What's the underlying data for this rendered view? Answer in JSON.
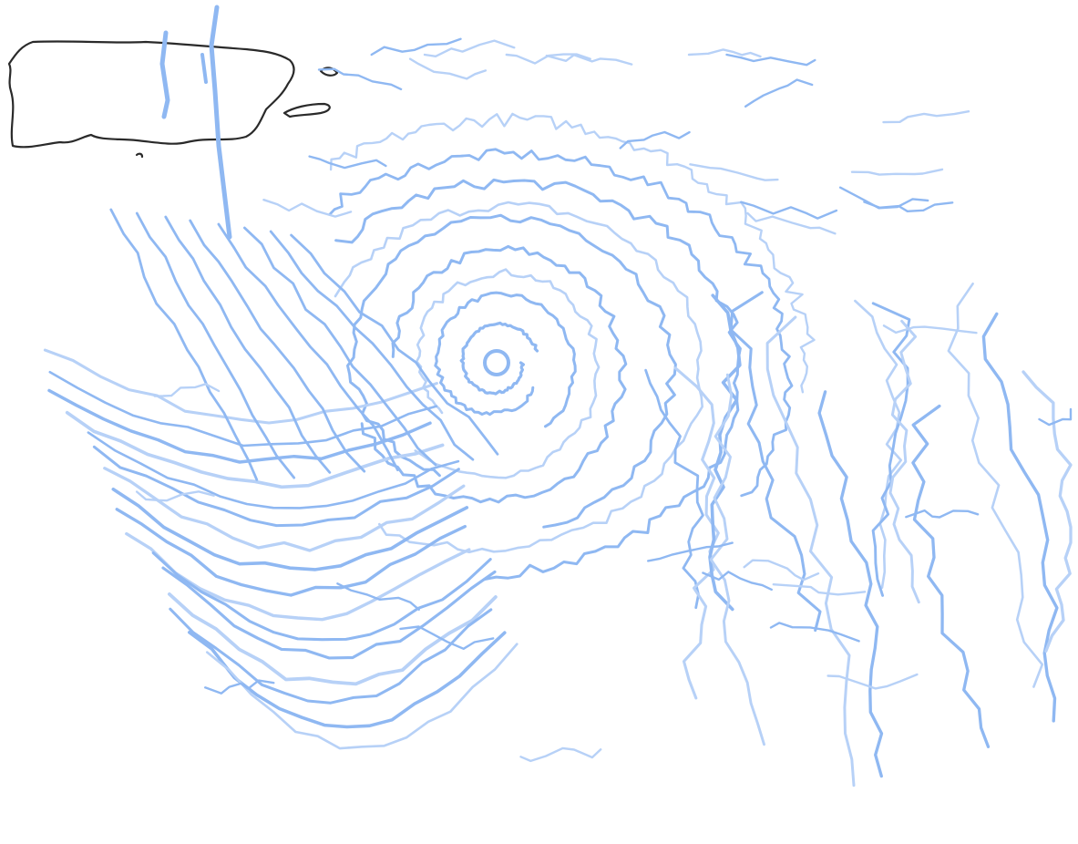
{
  "artwork": {
    "subject": "",
    "colors": {
      "background": "#ffffff",
      "cloud_primary": "#8fb8f2",
      "cloud_secondary": "#b7d1f7",
      "coastline": "#2a2a2a"
    }
  }
}
